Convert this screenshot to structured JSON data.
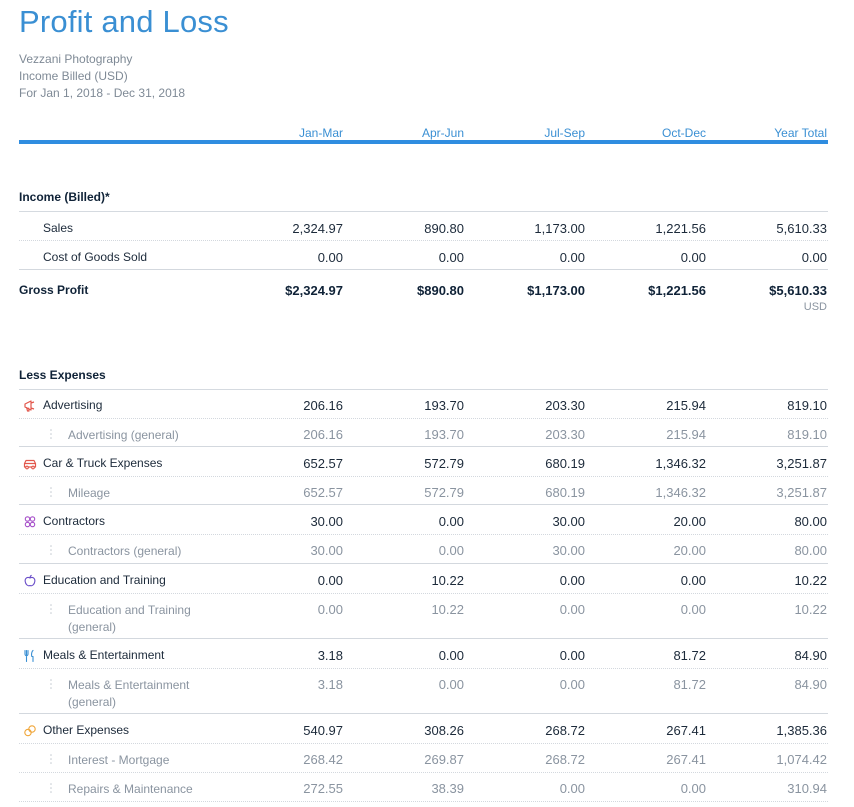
{
  "report": {
    "title": "Profit and Loss",
    "company": "Vezzani Photography",
    "basis": "Income Billed (USD)",
    "period": "For Jan 1, 2018 - Dec 31, 2018"
  },
  "columns": [
    "Jan-Mar",
    "Apr-Jun",
    "Jul-Sep",
    "Oct-Dec",
    "Year Total"
  ],
  "income": {
    "title": "Income (Billed)*",
    "rows": [
      {
        "label": "Sales",
        "values": [
          "2,324.97",
          "890.80",
          "1,173.00",
          "1,221.56",
          "5,610.33"
        ]
      },
      {
        "label": "Cost of Goods Sold",
        "values": [
          "0.00",
          "0.00",
          "0.00",
          "0.00",
          "0.00"
        ]
      }
    ]
  },
  "gross_profit": {
    "label": "Gross Profit",
    "values": [
      "$2,324.97",
      "$890.80",
      "$1,173.00",
      "$1,221.56",
      "$5,610.33"
    ],
    "currency": "USD"
  },
  "expenses": {
    "title": "Less Expenses",
    "rows": [
      {
        "label": "Advertising",
        "icon": "megaphone-icon",
        "color": "#e2574c",
        "values": [
          "206.16",
          "193.70",
          "203.30",
          "215.94",
          "819.10"
        ]
      },
      {
        "label": "Advertising (general)",
        "values": [
          "206.16",
          "193.70",
          "203.30",
          "215.94",
          "819.10"
        ]
      },
      {
        "label": "Car & Truck Expenses",
        "icon": "car-icon",
        "color": "#e2574c",
        "values": [
          "652.57",
          "572.79",
          "680.19",
          "1,346.32",
          "3,251.87"
        ]
      },
      {
        "label": "Mileage",
        "values": [
          "652.57",
          "572.79",
          "680.19",
          "1,346.32",
          "3,251.87"
        ]
      },
      {
        "label": "Contractors",
        "icon": "people-icon",
        "color": "#a64fc9",
        "values": [
          "30.00",
          "0.00",
          "30.00",
          "20.00",
          "80.00"
        ]
      },
      {
        "label": "Contractors (general)",
        "values": [
          "30.00",
          "0.00",
          "30.00",
          "20.00",
          "80.00"
        ]
      },
      {
        "label": "Education and Training",
        "icon": "apple-icon",
        "color": "#6b4fc9",
        "values": [
          "0.00",
          "10.22",
          "0.00",
          "0.00",
          "10.22"
        ]
      },
      {
        "label": "Education and Training",
        "label2": "(general)",
        "values": [
          "0.00",
          "10.22",
          "0.00",
          "0.00",
          "10.22"
        ]
      },
      {
        "label": "Meals & Entertainment",
        "icon": "fork-knife-icon",
        "color": "#3a8fd3",
        "values": [
          "3.18",
          "0.00",
          "0.00",
          "81.72",
          "84.90"
        ]
      },
      {
        "label": "Meals & Entertainment",
        "label2": "(general)",
        "values": [
          "3.18",
          "0.00",
          "0.00",
          "81.72",
          "84.90"
        ]
      },
      {
        "label": "Other Expenses",
        "icon": "coins-icon",
        "color": "#f0a63a",
        "values": [
          "540.97",
          "308.26",
          "268.72",
          "267.41",
          "1,385.36"
        ]
      },
      {
        "label": "Interest - Mortgage",
        "values": [
          "268.42",
          "269.87",
          "268.72",
          "267.41",
          "1,074.42"
        ]
      },
      {
        "label": "Repairs & Maintenance",
        "values": [
          "272.55",
          "38.39",
          "0.00",
          "0.00",
          "310.94"
        ]
      }
    ]
  }
}
